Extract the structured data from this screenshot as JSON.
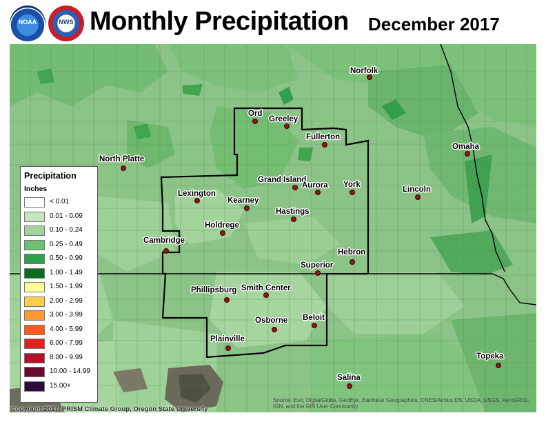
{
  "header": {
    "title": "Monthly Precipitation",
    "date": "December 2017",
    "logos": [
      "noaa-logo",
      "national-weather-service-logo"
    ],
    "logo_text": [
      "NOAA",
      "NWS"
    ]
  },
  "legend": {
    "title": "Precipitation",
    "units": "Inches",
    "bins": [
      {
        "label": "< 0.01",
        "color": "#ffffff"
      },
      {
        "label": "0.01 - 0.09",
        "color": "#c5e6c0"
      },
      {
        "label": "0.10 - 0.24",
        "color": "#a3d39c"
      },
      {
        "label": "0.25 - 0.49",
        "color": "#6fbf73"
      },
      {
        "label": "0.50 - 0.99",
        "color": "#2f9e4a"
      },
      {
        "label": "1.00 - 1.49",
        "color": "#0b6b1f"
      },
      {
        "label": "1.50 - 1.99",
        "color": "#ffff99"
      },
      {
        "label": "2.00 - 2.99",
        "color": "#ffcc4d"
      },
      {
        "label": "3.00 - 3.99",
        "color": "#ff9933"
      },
      {
        "label": "4.00 - 5.99",
        "color": "#ff5a1f"
      },
      {
        "label": "6.00 - 7.99",
        "color": "#e0221c"
      },
      {
        "label": "8.00 - 9.99",
        "color": "#b3112b"
      },
      {
        "label": "10.00 - 14.99",
        "color": "#6b0a2e"
      },
      {
        "label": "15.00+",
        "color": "#2e0a3a"
      }
    ]
  },
  "cities": [
    {
      "name": "Norfolk"
    },
    {
      "name": "Ord"
    },
    {
      "name": "Greeley"
    },
    {
      "name": "Fullerton"
    },
    {
      "name": "Omaha"
    },
    {
      "name": "North Platte"
    },
    {
      "name": "Grand Island"
    },
    {
      "name": "Aurora"
    },
    {
      "name": "York"
    },
    {
      "name": "Lexington"
    },
    {
      "name": "Kearney"
    },
    {
      "name": "Lincoln"
    },
    {
      "name": "Hastings"
    },
    {
      "name": "Holdrege"
    },
    {
      "name": "Cambridge"
    },
    {
      "name": "Hebron"
    },
    {
      "name": "Superior"
    },
    {
      "name": "Phillipsburg"
    },
    {
      "name": "Smith Center"
    },
    {
      "name": "Beloit"
    },
    {
      "name": "Osborne"
    },
    {
      "name": "Plainville"
    },
    {
      "name": "Topeka"
    },
    {
      "name": "Salina"
    }
  ],
  "footer": {
    "copyright": "Copyright 2017, PRISM Climate Group, Oregon State University",
    "source": "Source: Esri, DigitalGlobe, GeoEye, Earthstar Geographics, CNES/Airbus DS, USDA, USGS, AeroGRID, IGN, and the GIS User Community"
  }
}
